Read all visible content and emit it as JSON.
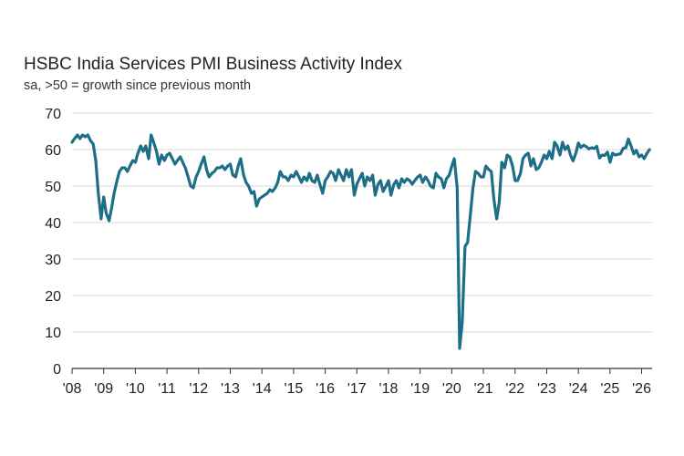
{
  "chart_data": {
    "type": "line",
    "title": "HSBC India Services PMI Business Activity Index",
    "subtitle": "sa, >50 = growth since previous month",
    "xlabel": "",
    "ylabel": "",
    "ylim": [
      0,
      70
    ],
    "yticks": [
      "0",
      "10",
      "20",
      "30",
      "40",
      "50",
      "60",
      "70"
    ],
    "xlim": [
      2008.0,
      2026.33
    ],
    "xticks": [
      "'08",
      "'09",
      "'10",
      "'11",
      "'12",
      "'13",
      "'14",
      "'15",
      "'16",
      "'17",
      "'18",
      "'19",
      "'20",
      "'21",
      "'22",
      "'23",
      "'24",
      "'25",
      "'26"
    ],
    "grid": "horizontal",
    "line_color": "#1c6f86",
    "series": [
      {
        "x": [
          2008.0,
          2008.08,
          2008.17,
          2008.25,
          2008.33,
          2008.42,
          2008.5,
          2008.58,
          2008.67,
          2008.75,
          2008.83,
          2008.92,
          2009.0,
          2009.08,
          2009.17,
          2009.25,
          2009.33,
          2009.42,
          2009.5,
          2009.58,
          2009.67,
          2009.75,
          2009.83,
          2009.92,
          2010.0,
          2010.08,
          2010.17,
          2010.25,
          2010.33,
          2010.42,
          2010.5,
          2010.58,
          2010.67,
          2010.75,
          2010.83,
          2010.92,
          2011.0,
          2011.08,
          2011.17,
          2011.25,
          2011.33,
          2011.42,
          2011.5,
          2011.58,
          2011.67,
          2011.75,
          2011.83,
          2011.92,
          2012.0,
          2012.08,
          2012.17,
          2012.25,
          2012.33,
          2012.42,
          2012.5,
          2012.58,
          2012.67,
          2012.75,
          2012.83,
          2012.92,
          2013.0,
          2013.08,
          2013.17,
          2013.25,
          2013.33,
          2013.42,
          2013.5,
          2013.58,
          2013.67,
          2013.75,
          2013.83,
          2013.92,
          2014.0,
          2014.08,
          2014.17,
          2014.25,
          2014.33,
          2014.42,
          2014.5,
          2014.58,
          2014.67,
          2014.75,
          2014.83,
          2014.92,
          2015.0,
          2015.08,
          2015.17,
          2015.25,
          2015.33,
          2015.42,
          2015.5,
          2015.58,
          2015.67,
          2015.75,
          2015.83,
          2015.92,
          2016.0,
          2016.08,
          2016.17,
          2016.25,
          2016.33,
          2016.42,
          2016.5,
          2016.58,
          2016.67,
          2016.75,
          2016.83,
          2016.92,
          2017.0,
          2017.08,
          2017.17,
          2017.25,
          2017.33,
          2017.42,
          2017.5,
          2017.58,
          2017.67,
          2017.75,
          2017.83,
          2017.92,
          2018.0,
          2018.08,
          2018.17,
          2018.25,
          2018.33,
          2018.42,
          2018.5,
          2018.58,
          2018.67,
          2018.75,
          2018.83,
          2018.92,
          2019.0,
          2019.08,
          2019.17,
          2019.25,
          2019.33,
          2019.42,
          2019.5,
          2019.58,
          2019.67,
          2019.75,
          2019.83,
          2019.92,
          2020.0,
          2020.08,
          2020.17,
          2020.25,
          2020.33,
          2020.42,
          2020.5,
          2020.58,
          2020.67,
          2020.75,
          2020.83,
          2020.92,
          2021.0,
          2021.08,
          2021.17,
          2021.25,
          2021.33,
          2021.42,
          2021.5,
          2021.58,
          2021.67,
          2021.75,
          2021.83,
          2021.92,
          2022.0,
          2022.08,
          2022.17,
          2022.25,
          2022.33,
          2022.42,
          2022.5,
          2022.58,
          2022.67,
          2022.75,
          2022.83,
          2022.92,
          2023.0,
          2023.08,
          2023.17,
          2023.25,
          2023.33,
          2023.42,
          2023.5,
          2023.58,
          2023.67,
          2023.75,
          2023.83,
          2023.92,
          2024.0,
          2024.08,
          2024.17,
          2024.25,
          2024.33,
          2024.42,
          2024.5,
          2024.58,
          2024.67,
          2024.75,
          2024.83,
          2024.92,
          2025.0,
          2025.08,
          2025.17,
          2025.25,
          2025.33,
          2025.42,
          2025.5,
          2025.58,
          2025.67,
          2025.75,
          2025.83,
          2025.92,
          2026.0,
          2026.08,
          2026.17,
          2026.25
        ],
        "values": [
          62.0,
          63.0,
          64.0,
          63.0,
          64.0,
          63.5,
          64.0,
          62.5,
          61.5,
          57.0,
          48.0,
          41.0,
          47.0,
          42.5,
          40.5,
          44.0,
          48.0,
          51.5,
          54.0,
          55.0,
          55.0,
          54.0,
          55.5,
          57.0,
          56.5,
          59.0,
          61.0,
          59.5,
          61.0,
          57.5,
          64.0,
          62.0,
          59.5,
          56.0,
          58.5,
          57.0,
          58.5,
          59.0,
          57.5,
          56.0,
          57.0,
          58.0,
          56.5,
          55.0,
          52.5,
          50.0,
          49.5,
          52.5,
          54.0,
          56.0,
          58.0,
          54.5,
          52.5,
          53.5,
          54.0,
          55.0,
          55.0,
          55.5,
          54.5,
          55.5,
          56.0,
          53.0,
          52.5,
          55.5,
          57.5,
          53.0,
          51.0,
          50.0,
          48.0,
          48.5,
          44.5,
          46.5,
          47.0,
          47.5,
          48.0,
          49.0,
          48.5,
          49.5,
          51.0,
          54.0,
          52.5,
          52.5,
          51.5,
          53.0,
          52.5,
          54.0,
          52.5,
          51.0,
          52.5,
          51.5,
          53.5,
          51.5,
          51.0,
          53.0,
          50.5,
          48.0,
          51.5,
          52.5,
          54.0,
          53.5,
          51.5,
          54.5,
          53.0,
          51.5,
          54.5,
          52.5,
          54.5,
          47.5,
          50.5,
          52.0,
          53.5,
          50.0,
          52.5,
          51.5,
          53.0,
          47.5,
          50.5,
          51.5,
          48.5,
          50.0,
          51.5,
          47.5,
          50.5,
          51.5,
          49.5,
          52.0,
          51.0,
          52.0,
          51.5,
          50.5,
          51.5,
          52.5,
          53.0,
          51.0,
          52.5,
          51.5,
          50.0,
          49.5,
          53.5,
          52.5,
          52.0,
          49.5,
          52.0,
          53.0,
          55.5,
          57.5,
          49.5,
          5.5,
          12.5,
          33.5,
          34.5,
          41.5,
          49.5,
          54.0,
          53.5,
          52.5,
          52.5,
          55.5,
          54.5,
          54.0,
          46.5,
          41.0,
          45.5,
          56.5,
          55.0,
          58.5,
          58.0,
          55.5,
          51.5,
          51.5,
          53.5,
          57.5,
          58.5,
          59.0,
          55.5,
          57.5,
          54.5,
          55.0,
          56.5,
          58.5,
          57.5,
          59.5,
          57.5,
          62.0,
          61.0,
          58.5,
          62.0,
          60.0,
          61.0,
          58.5,
          56.9,
          59.0,
          61.8,
          60.6,
          61.2,
          60.8,
          60.2,
          60.5,
          60.3,
          60.9,
          57.7,
          58.5,
          58.4,
          59.3,
          56.5,
          59.0,
          58.5,
          58.7,
          58.8,
          60.4,
          60.5,
          62.9,
          60.9,
          58.8,
          59.8,
          58.0,
          58.5,
          57.5,
          59.0,
          60.0
        ]
      }
    ]
  }
}
